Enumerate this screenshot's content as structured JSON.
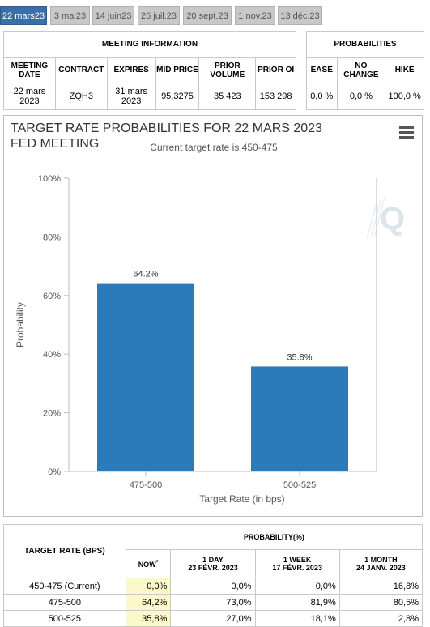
{
  "tabs": [
    "22 mars23",
    "3 mai23",
    "14 juin23",
    "26 juil.23",
    "20 sept.23",
    "1 nov.23",
    "13 déc.23"
  ],
  "meeting_info": {
    "title": "MEETING INFORMATION",
    "headers": [
      "MEETING DATE",
      "CONTRACT",
      "EXPIRES",
      "MID PRICE",
      "PRIOR VOLUME",
      "PRIOR OI"
    ],
    "values": [
      "22 mars 2023",
      "ZQH3",
      "31 mars 2023",
      "95,3275",
      "35 423",
      "153 298"
    ]
  },
  "probabilities": {
    "title": "PROBABILITIES",
    "headers": [
      "EASE",
      "NO CHANGE",
      "HIKE"
    ],
    "values": [
      "0,0 %",
      "0,0 %",
      "100,0 %"
    ]
  },
  "chart": {
    "title": "TARGET RATE PROBABILITIES FOR 22 MARS 2023 FED MEETING",
    "subtitle": "Current target rate is 450-475"
  },
  "chart_data": {
    "type": "bar",
    "title": "TARGET RATE PROBABILITIES FOR 22 MARS 2023 FED MEETING",
    "subtitle": "Current target rate is 450-475",
    "categories": [
      "475-500",
      "500-525"
    ],
    "values": [
      64.2,
      35.8
    ],
    "data_labels": [
      "64.2%",
      "35.8%"
    ],
    "xlabel": "Target Rate (in bps)",
    "ylabel": "Probability",
    "ylim": [
      0,
      100
    ],
    "yticks": [
      "0%",
      "20%",
      "40%",
      "60%",
      "80%",
      "100%"
    ],
    "grid": false,
    "color": "#2b7bbb"
  },
  "bottom_table": {
    "col_target": "TARGET RATE (BPS)",
    "col_prob": "PROBABILITY(%)",
    "now_label": "NOW",
    "now_mark": "*",
    "periods": [
      {
        "label": "1 DAY",
        "date": "23 FÉVR. 2023"
      },
      {
        "label": "1 WEEK",
        "date": "17 FÉVR. 2023"
      },
      {
        "label": "1 MONTH",
        "date": "24 JANV. 2023"
      }
    ],
    "rows": [
      {
        "rate": "450-475 (Current)",
        "now": "0,0%",
        "day": "0,0%",
        "week": "0,0%",
        "month": "16,8%"
      },
      {
        "rate": "475-500",
        "now": "64,2%",
        "day": "73,0%",
        "week": "81,9%",
        "month": "80,5%"
      },
      {
        "rate": "500-525",
        "now": "35,8%",
        "day": "27,0%",
        "week": "18,1%",
        "month": "2,8%"
      }
    ]
  }
}
